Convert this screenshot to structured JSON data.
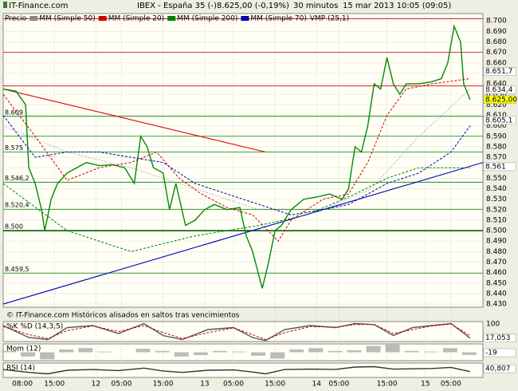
{
  "header": {
    "site": "IT-Finance.com",
    "instrument": "IBEX - España 35 (-)",
    "quote": "8.625,00 (-0,19%)",
    "interval": "30 minutos",
    "timestamp": "15 mar 2013 10:05 (09:05)"
  },
  "footer": "© IT-Finance.com  Históricos alisados en saltos tras vencimientos",
  "chart_data": [
    {
      "type": "line",
      "ylim": [
        8.427,
        8.707
      ],
      "xlim": [
        0,
        150
      ],
      "yticks": [
        {
          "value": 8.43,
          "label": "8.430"
        },
        {
          "value": 8.44,
          "label": "8.440"
        },
        {
          "value": 8.45,
          "label": "8.450"
        },
        {
          "value": 8.46,
          "label": "8.460"
        },
        {
          "value": 8.47,
          "label": "8.470"
        },
        {
          "value": 8.48,
          "label": "8.480"
        },
        {
          "value": 8.49,
          "label": "8.490"
        },
        {
          "value": 8.5,
          "label": "8.500"
        },
        {
          "value": 8.51,
          "label": "8.510"
        },
        {
          "value": 8.52,
          "label": "8.520"
        },
        {
          "value": 8.53,
          "label": "8.530"
        },
        {
          "value": 8.54,
          "label": "8.540"
        },
        {
          "value": 8.55,
          "label": "8.550"
        },
        {
          "value": 8.56,
          "label": "8.560"
        },
        {
          "value": 8.57,
          "label": "8.570"
        },
        {
          "value": 8.58,
          "label": "8.580"
        },
        {
          "value": 8.59,
          "label": "8.590"
        },
        {
          "value": 8.6,
          "label": "8.600"
        },
        {
          "value": 8.61,
          "label": "8.610"
        },
        {
          "value": 8.62,
          "label": "8.620"
        },
        {
          "value": 8.63,
          "label": "8.630"
        },
        {
          "value": 8.64,
          "label": "8.640"
        },
        {
          "value": 8.65,
          "label": "8.650"
        },
        {
          "value": 8.66,
          "label": "8.660"
        },
        {
          "value": 8.67,
          "label": "8.670"
        },
        {
          "value": 8.68,
          "label": "8.680"
        },
        {
          "value": 8.69,
          "label": "8.690"
        },
        {
          "value": 8.7,
          "label": "8.700"
        }
      ],
      "xticks": [
        {
          "value": 6,
          "label": "08:00"
        },
        {
          "value": 16,
          "label": "15:00"
        },
        {
          "value": 29,
          "label": "12"
        },
        {
          "value": 37,
          "label": "05:00"
        },
        {
          "value": 50,
          "label": "15:00"
        },
        {
          "value": 63,
          "label": "13"
        },
        {
          "value": 72,
          "label": "05:00"
        },
        {
          "value": 85,
          "label": "15:00"
        },
        {
          "value": 98,
          "label": "14"
        },
        {
          "value": 105,
          "label": "05:00"
        },
        {
          "value": 120,
          "label": "15:00"
        },
        {
          "value": 132,
          "label": "15"
        },
        {
          "value": 140,
          "label": "05:00"
        }
      ],
      "grid": true,
      "series": [
        {
          "name": "Precio",
          "color": "#008a00",
          "style": "solid",
          "x": [
            0,
            4,
            7,
            8,
            10,
            12,
            13,
            15,
            17,
            20,
            23,
            26,
            30,
            34,
            38,
            41,
            43,
            45,
            47,
            50,
            52,
            54,
            57,
            60,
            63,
            66,
            70,
            74,
            76,
            78,
            81,
            83,
            85,
            87,
            90,
            94,
            98,
            102,
            106,
            108,
            110,
            112,
            114,
            116,
            118,
            120,
            122,
            124,
            126,
            130,
            134,
            137,
            139,
            141,
            143,
            144,
            146
          ],
          "values": [
            8.635,
            8.633,
            8.62,
            8.56,
            8.545,
            8.52,
            8.5,
            8.53,
            8.545,
            8.555,
            8.56,
            8.565,
            8.562,
            8.563,
            8.56,
            8.545,
            8.59,
            8.58,
            8.56,
            8.555,
            8.52,
            8.545,
            8.505,
            8.51,
            8.52,
            8.525,
            8.52,
            8.522,
            8.495,
            8.48,
            8.445,
            8.47,
            8.5,
            8.505,
            8.52,
            8.53,
            8.532,
            8.535,
            8.53,
            8.54,
            8.58,
            8.575,
            8.6,
            8.64,
            8.635,
            8.665,
            8.64,
            8.63,
            8.64,
            8.64,
            8.642,
            8.645,
            8.66,
            8.695,
            8.68,
            8.64,
            8.625
          ]
        },
        {
          "name": "MM (Simple 50)",
          "color": "#888888",
          "style": "dotted",
          "x": [
            0,
            20,
            40,
            60,
            80,
            100,
            115,
            130,
            146
          ],
          "values": [
            8.6,
            8.575,
            8.56,
            8.54,
            8.52,
            8.52,
            8.54,
            8.59,
            8.635
          ]
        },
        {
          "name": "MM (Simple 20)",
          "color": "#cc0000",
          "style": "dashed",
          "x": [
            0,
            10,
            20,
            30,
            40,
            48,
            55,
            62,
            70,
            78,
            86,
            90,
            100,
            108,
            114,
            120,
            126,
            134,
            146
          ],
          "values": [
            8.63,
            8.59,
            8.548,
            8.56,
            8.565,
            8.575,
            8.55,
            8.535,
            8.522,
            8.515,
            8.49,
            8.51,
            8.53,
            8.535,
            8.565,
            8.61,
            8.635,
            8.64,
            8.645
          ]
        },
        {
          "name": "MM (Simple 200)",
          "color": "#008000",
          "style": "dashed",
          "x": [
            0,
            20,
            40,
            60,
            80,
            95,
            110,
            120,
            130,
            146
          ],
          "values": [
            8.545,
            8.5,
            8.48,
            8.495,
            8.505,
            8.515,
            8.535,
            8.55,
            8.56,
            8.56
          ]
        },
        {
          "name": "MM (Simple 70)",
          "color": "#0000aa",
          "style": "dashed",
          "x": [
            0,
            10,
            20,
            30,
            40,
            50,
            60,
            70,
            80,
            90,
            100,
            108,
            114,
            120,
            130,
            140,
            146
          ],
          "values": [
            8.61,
            8.57,
            8.575,
            8.575,
            8.57,
            8.565,
            8.545,
            8.535,
            8.525,
            8.515,
            8.52,
            8.525,
            8.535,
            8.545,
            8.555,
            8.575,
            8.6
          ]
        }
      ],
      "extra_legend": "VMP (25,1)",
      "levels": [
        {
          "value": 8.702,
          "color": "#cc0000"
        },
        {
          "value": 8.67,
          "color": "#cc0000"
        },
        {
          "value": 8.638,
          "color": "#cc0000"
        },
        {
          "value": 8.609,
          "label": "8.609",
          "color": "#008000"
        },
        {
          "value": 8.59,
          "color": "#008000"
        },
        {
          "value": 8.575,
          "label": "8.575",
          "color": "#008000"
        },
        {
          "value": 8.5462,
          "label": "8.546,2",
          "color": "#008000"
        },
        {
          "value": 8.5204,
          "label": "8.520,4",
          "color": "#008000"
        },
        {
          "value": 8.5,
          "label": "8.500",
          "color": "#006000"
        },
        {
          "value": 8.4595,
          "label": "8.459,5",
          "color": "#008000"
        }
      ],
      "trendlines": [
        {
          "color": "#dd0000",
          "x": [
            0,
            82
          ],
          "y": [
            8.635,
            8.575
          ]
        },
        {
          "color": "#0000bb",
          "x": [
            0,
            150
          ],
          "y": [
            8.43,
            8.565
          ]
        }
      ],
      "markers": [
        {
          "value": 8.6517,
          "label": "8.651,7",
          "color": "#cc0000",
          "bg": "#ffffff"
        },
        {
          "value": 8.6344,
          "label": "8.634,4",
          "color": "#333333",
          "bg": "#ffffff"
        },
        {
          "value": 8.625,
          "label": "8.625,00",
          "color": "#000000",
          "bg": "#ffff00"
        },
        {
          "value": 8.6051,
          "label": "8.605,1",
          "color": "#000080",
          "bg": "#ffffff"
        },
        {
          "value": 8.561,
          "label": "8.561",
          "color": "#006000",
          "bg": "#ffffff"
        }
      ]
    },
    {
      "type": "stochastic",
      "title": "%K %D (14,3,5)",
      "ylim": [
        0,
        100
      ],
      "yticks": [
        100
      ],
      "x": [
        0,
        8,
        14,
        20,
        28,
        36,
        44,
        50,
        56,
        64,
        72,
        78,
        82,
        88,
        96,
        104,
        110,
        116,
        122,
        128,
        134,
        140,
        146
      ],
      "series": [
        {
          "color": "#555555",
          "values": [
            80,
            20,
            10,
            70,
            80,
            40,
            90,
            30,
            10,
            60,
            70,
            20,
            5,
            60,
            80,
            70,
            90,
            85,
            30,
            70,
            80,
            90,
            17.053
          ]
        },
        {
          "color": "#cc0000",
          "values": [
            75,
            35,
            15,
            55,
            78,
            50,
            80,
            45,
            15,
            45,
            68,
            35,
            10,
            45,
            75,
            72,
            85,
            86,
            40,
            60,
            78,
            88,
            30
          ]
        }
      ],
      "last": 17.053,
      "last_label": "17,053"
    },
    {
      "type": "momentum",
      "title": "Mom (12)",
      "ylim": [
        -60,
        60
      ],
      "x": [
        0,
        6,
        12,
        18,
        24,
        30,
        36,
        42,
        48,
        54,
        60,
        66,
        72,
        78,
        84,
        90,
        96,
        102,
        108,
        114,
        120,
        126,
        132,
        138,
        144
      ],
      "values": [
        10,
        -30,
        -50,
        20,
        30,
        5,
        0,
        25,
        10,
        -30,
        -20,
        10,
        5,
        -25,
        -45,
        20,
        30,
        10,
        15,
        45,
        55,
        10,
        5,
        30,
        -19
      ],
      "last": -19
    },
    {
      "type": "rsi",
      "title": "RSI (14)",
      "ylim": [
        0,
        100
      ],
      "x": [
        0,
        8,
        14,
        20,
        28,
        36,
        44,
        50,
        56,
        64,
        72,
        78,
        82,
        88,
        96,
        104,
        110,
        116,
        122,
        128,
        134,
        140,
        146
      ],
      "values": [
        55,
        35,
        25,
        50,
        55,
        48,
        65,
        45,
        35,
        50,
        52,
        38,
        25,
        55,
        58,
        56,
        72,
        75,
        58,
        60,
        62,
        70,
        40.807
      ],
      "last": 40.807,
      "last_label": "40,807"
    }
  ]
}
